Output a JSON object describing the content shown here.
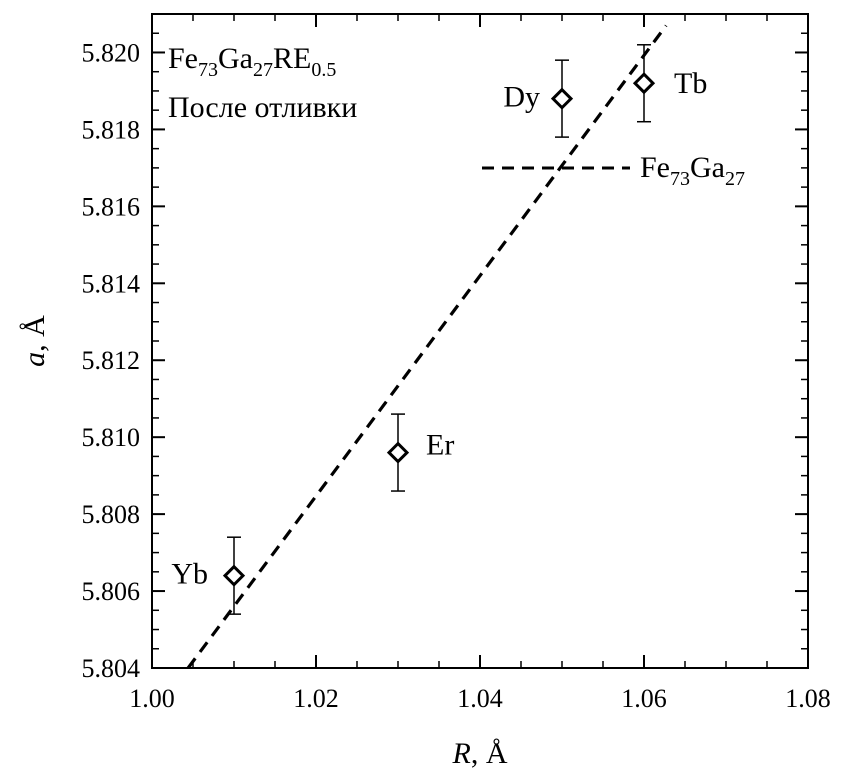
{
  "chart_data": {
    "type": "scatter",
    "title": "",
    "xlabel": {
      "var": "R",
      "unit": ", Å"
    },
    "ylabel": {
      "var": "a",
      "unit": ", Å"
    },
    "xlim": [
      1.0,
      1.08
    ],
    "ylim": [
      5.804,
      5.821
    ],
    "x_ticks": [
      "1.00",
      "1.02",
      "1.04",
      "1.06",
      "1.08"
    ],
    "y_ticks": [
      "5.804",
      "5.806",
      "5.808",
      "5.810",
      "5.812",
      "5.814",
      "5.816",
      "5.818",
      "5.820"
    ],
    "grid": false,
    "annotation": {
      "composition": {
        "base": "Fe",
        "s1": "73",
        "mid": "Ga",
        "s2": "27",
        "tail": "RE",
        "s3": "0.5"
      },
      "state": "После отливки"
    },
    "legend": {
      "placement": "top-right",
      "label": {
        "base": "Fe",
        "s1": "73",
        "mid": "Ga",
        "s2": "27"
      },
      "style": "dashed"
    },
    "points": [
      {
        "label": "Yb",
        "x": 1.01,
        "y": 5.8064,
        "err": 0.001
      },
      {
        "label": "Er",
        "x": 1.03,
        "y": 5.8096,
        "err": 0.001
      },
      {
        "label": "Dy",
        "x": 1.05,
        "y": 5.8188,
        "err": 0.001
      },
      {
        "label": "Tb",
        "x": 1.06,
        "y": 5.8192,
        "err": 0.001
      }
    ],
    "trend_line": {
      "x": [
        1.0044,
        1.0627
      ],
      "y": [
        5.804,
        5.8207
      ]
    },
    "colors": {
      "axes": "#000000",
      "markers": "#000000",
      "background": "#ffffff"
    }
  }
}
